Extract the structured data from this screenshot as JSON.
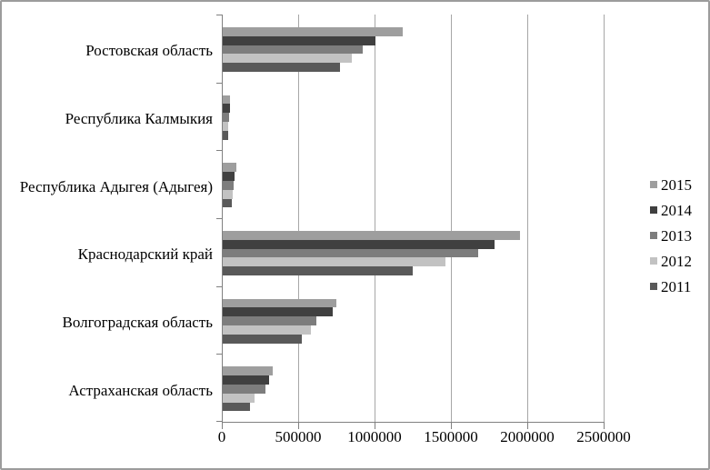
{
  "chart_data": {
    "type": "bar",
    "orientation": "horizontal",
    "title": "",
    "xlabel": "",
    "ylabel": "",
    "grid": true,
    "categories": [
      "Ростовская область",
      "Республика Калмыкия",
      "Республика Адыгея (Адыгея)",
      "Краснодарский край",
      "Волгоградская область",
      "Астраханская область"
    ],
    "series": [
      {
        "name": "2015",
        "color": "#9e9e9e",
        "values": [
          1180000,
          50000,
          92000,
          1945000,
          746000,
          327000
        ]
      },
      {
        "name": "2014",
        "color": "#404040",
        "values": [
          1000000,
          46000,
          78000,
          1780000,
          720000,
          304000
        ]
      },
      {
        "name": "2013",
        "color": "#7d7d7d",
        "values": [
          915000,
          43000,
          72000,
          1670000,
          611000,
          280000
        ]
      },
      {
        "name": "2012",
        "color": "#c2c2c2",
        "values": [
          848000,
          37000,
          66000,
          1460000,
          577000,
          208000
        ]
      },
      {
        "name": "2011",
        "color": "#595959",
        "values": [
          770000,
          33000,
          58000,
          1245000,
          516000,
          181000
        ]
      }
    ],
    "x_axis": {
      "min": 0,
      "max": 2500000,
      "tick_interval": 500000,
      "tick_labels": [
        "0",
        "500000",
        "1000000",
        "1500000",
        "2000000",
        "2500000"
      ]
    },
    "legend": {
      "position": "right",
      "entries": [
        "2015",
        "2014",
        "2013",
        "2012",
        "2011"
      ]
    },
    "colors": {
      "axis": "#808080",
      "gridline": "#a6a6a6",
      "text": "#000000",
      "frame_border": "#9c9c9c",
      "background": "#ffffff"
    }
  }
}
